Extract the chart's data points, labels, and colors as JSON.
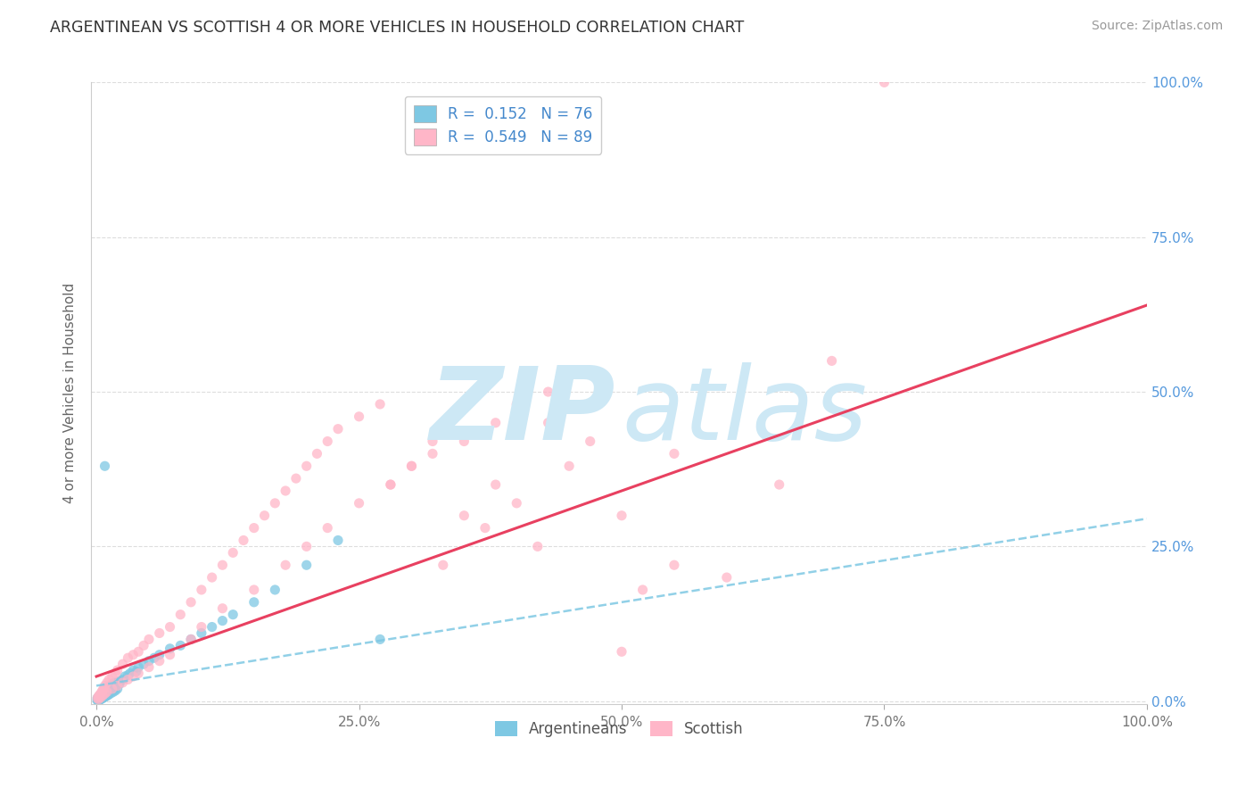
{
  "title": "ARGENTINEAN VS SCOTTISH 4 OR MORE VEHICLES IN HOUSEHOLD CORRELATION CHART",
  "source": "Source: ZipAtlas.com",
  "ylabel": "4 or more Vehicles in Household",
  "xlim": [
    -0.005,
    1.0
  ],
  "ylim": [
    -0.005,
    1.0
  ],
  "xtick_labels": [
    "0.0%",
    "25.0%",
    "50.0%",
    "75.0%",
    "100.0%"
  ],
  "xtick_vals": [
    0.0,
    0.25,
    0.5,
    0.75,
    1.0
  ],
  "ytick_labels_right": [
    "0.0%",
    "25.0%",
    "50.0%",
    "75.0%",
    "100.0%"
  ],
  "ytick_vals": [
    0.0,
    0.25,
    0.5,
    0.75,
    1.0
  ],
  "argentinean_R": 0.152,
  "argentinean_N": 76,
  "scottish_R": 0.549,
  "scottish_N": 89,
  "argentinean_color": "#7ec8e3",
  "scottish_color": "#ffb6c8",
  "scottish_line_color": "#e84060",
  "argentinean_line_color": "#7ec8e3",
  "background_color": "#ffffff",
  "watermark_color": "#cde8f5",
  "grid_color": "#dddddd",
  "arg_trend_intercept": 0.025,
  "arg_trend_slope": 0.27,
  "sco_trend_intercept": 0.04,
  "sco_trend_slope": 0.6,
  "argentinean_x": [
    0.001,
    0.001,
    0.002,
    0.002,
    0.003,
    0.003,
    0.004,
    0.004,
    0.005,
    0.005,
    0.006,
    0.006,
    0.007,
    0.007,
    0.008,
    0.008,
    0.009,
    0.009,
    0.01,
    0.01,
    0.011,
    0.011,
    0.012,
    0.012,
    0.013,
    0.013,
    0.014,
    0.015,
    0.015,
    0.016,
    0.017,
    0.018,
    0.019,
    0.02,
    0.021,
    0.022,
    0.023,
    0.025,
    0.027,
    0.03,
    0.032,
    0.035,
    0.038,
    0.04,
    0.045,
    0.05,
    0.055,
    0.06,
    0.07,
    0.08,
    0.09,
    0.1,
    0.11,
    0.12,
    0.13,
    0.15,
    0.17,
    0.2,
    0.23,
    0.27,
    0.001,
    0.002,
    0.003,
    0.004,
    0.005,
    0.006,
    0.007,
    0.008,
    0.009,
    0.01,
    0.011,
    0.012,
    0.014,
    0.016,
    0.018,
    0.02
  ],
  "argentinean_y": [
    0.002,
    0.005,
    0.003,
    0.006,
    0.004,
    0.008,
    0.005,
    0.009,
    0.006,
    0.01,
    0.007,
    0.012,
    0.008,
    0.014,
    0.38,
    0.01,
    0.012,
    0.016,
    0.014,
    0.018,
    0.016,
    0.02,
    0.018,
    0.022,
    0.02,
    0.025,
    0.022,
    0.027,
    0.025,
    0.028,
    0.03,
    0.025,
    0.028,
    0.03,
    0.032,
    0.028,
    0.033,
    0.035,
    0.04,
    0.042,
    0.045,
    0.05,
    0.048,
    0.055,
    0.06,
    0.065,
    0.07,
    0.075,
    0.085,
    0.09,
    0.1,
    0.11,
    0.12,
    0.13,
    0.14,
    0.16,
    0.18,
    0.22,
    0.26,
    0.1,
    0.001,
    0.002,
    0.002,
    0.003,
    0.004,
    0.005,
    0.006,
    0.007,
    0.008,
    0.009,
    0.01,
    0.011,
    0.013,
    0.015,
    0.017,
    0.02
  ],
  "scottish_x": [
    0.001,
    0.002,
    0.003,
    0.004,
    0.005,
    0.006,
    0.007,
    0.008,
    0.01,
    0.012,
    0.015,
    0.018,
    0.02,
    0.025,
    0.03,
    0.035,
    0.04,
    0.045,
    0.05,
    0.06,
    0.07,
    0.08,
    0.09,
    0.1,
    0.11,
    0.12,
    0.13,
    0.14,
    0.15,
    0.16,
    0.17,
    0.18,
    0.19,
    0.2,
    0.21,
    0.22,
    0.23,
    0.25,
    0.27,
    0.28,
    0.3,
    0.32,
    0.33,
    0.35,
    0.37,
    0.38,
    0.4,
    0.42,
    0.43,
    0.45,
    0.47,
    0.5,
    0.52,
    0.55,
    0.6,
    0.65,
    0.7,
    0.002,
    0.004,
    0.006,
    0.008,
    0.01,
    0.015,
    0.02,
    0.025,
    0.03,
    0.035,
    0.04,
    0.05,
    0.06,
    0.07,
    0.09,
    0.1,
    0.12,
    0.15,
    0.18,
    0.2,
    0.22,
    0.25,
    0.28,
    0.3,
    0.32,
    0.35,
    0.38,
    0.4,
    0.43,
    0.5,
    0.55,
    0.75
  ],
  "scottish_y": [
    0.005,
    0.008,
    0.01,
    0.012,
    0.015,
    0.018,
    0.02,
    0.025,
    0.03,
    0.035,
    0.04,
    0.045,
    0.05,
    0.06,
    0.07,
    0.075,
    0.08,
    0.09,
    0.1,
    0.11,
    0.12,
    0.14,
    0.16,
    0.18,
    0.2,
    0.22,
    0.24,
    0.26,
    0.28,
    0.3,
    0.32,
    0.34,
    0.36,
    0.38,
    0.4,
    0.42,
    0.44,
    0.46,
    0.48,
    0.35,
    0.38,
    0.42,
    0.22,
    0.3,
    0.28,
    0.35,
    0.32,
    0.25,
    0.45,
    0.38,
    0.42,
    0.08,
    0.18,
    0.22,
    0.2,
    0.35,
    0.55,
    0.003,
    0.006,
    0.009,
    0.012,
    0.015,
    0.02,
    0.025,
    0.03,
    0.035,
    0.04,
    0.045,
    0.055,
    0.065,
    0.075,
    0.1,
    0.12,
    0.15,
    0.18,
    0.22,
    0.25,
    0.28,
    0.32,
    0.35,
    0.38,
    0.4,
    0.42,
    0.45,
    0.48,
    0.5,
    0.3,
    0.4,
    1.0
  ]
}
